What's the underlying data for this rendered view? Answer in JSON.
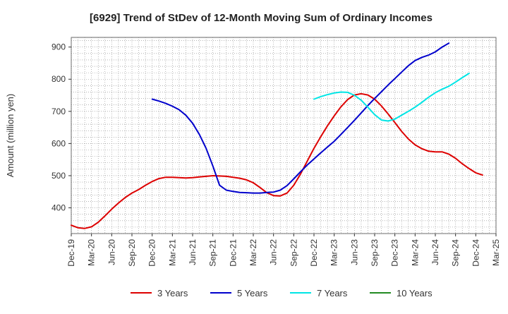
{
  "chart_data": {
    "type": "line",
    "title": "[6929]  Trend of StDev of 12-Month Moving Sum of Ordinary Incomes",
    "xlabel": "",
    "ylabel": "Amount (million yen)",
    "ylim": [
      320,
      930
    ],
    "yticks": [
      400,
      500,
      600,
      700,
      800,
      900
    ],
    "grid": true,
    "legend_position": "bottom",
    "x_ticks": [
      "Dec-19",
      "Mar-20",
      "Jun-20",
      "Sep-20",
      "Dec-20",
      "Mar-21",
      "Jun-21",
      "Sep-21",
      "Dec-21",
      "Mar-22",
      "Jun-22",
      "Sep-22",
      "Dec-22",
      "Mar-23",
      "Jun-23",
      "Sep-23",
      "Dec-23",
      "Mar-24",
      "Jun-24",
      "Sep-24",
      "Dec-24",
      "Mar-25"
    ],
    "series": [
      {
        "name": "3 Years",
        "color": "#dd0000",
        "start_index": 0,
        "values": [
          346,
          338,
          336,
          341,
          355,
          375,
          396,
          415,
          432,
          446,
          457,
          470,
          482,
          491,
          495,
          495,
          494,
          493,
          494,
          496,
          498,
          500,
          499,
          498,
          495,
          492,
          487,
          478,
          463,
          447,
          438,
          437,
          446,
          470,
          505,
          545,
          585,
          621,
          655,
          686,
          714,
          737,
          751,
          755,
          751,
          738,
          717,
          692,
          665,
          638,
          614,
          596,
          584,
          576,
          574,
          574,
          567,
          554,
          537,
          522,
          509,
          502
        ]
      },
      {
        "name": "5 Years",
        "color": "#0000cc",
        "start_index": 12,
        "values": [
          738,
          732,
          725,
          716,
          705,
          688,
          663,
          628,
          585,
          530,
          470,
          455,
          451,
          448,
          447,
          446,
          446,
          448,
          449,
          455,
          469,
          490,
          512,
          533,
          552,
          571,
          589,
          607,
          628,
          650,
          672,
          695,
          718,
          740,
          761,
          782,
          802,
          822,
          842,
          858,
          868,
          875,
          885,
          900,
          912
        ]
      },
      {
        "name": "7 Years",
        "color": "#00e5e5",
        "start_index": 36,
        "values": [
          738,
          746,
          752,
          757,
          760,
          759,
          750,
          735,
          713,
          690,
          673,
          670,
          676,
          688,
          700,
          713,
          728,
          744,
          758,
          769,
          778,
          791,
          805,
          818
        ]
      },
      {
        "name": "10 Years",
        "color": "#228b22",
        "start_index": 0,
        "values": []
      }
    ]
  }
}
